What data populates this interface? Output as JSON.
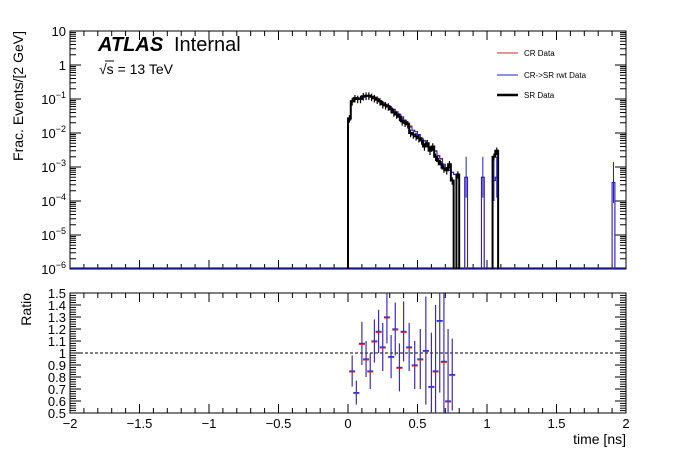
{
  "header": {
    "atlas": "ATLAS",
    "internal": "Internal",
    "energy_sqrt": "√s",
    "energy_rest": " = 13 TeV"
  },
  "colors": {
    "cr": "#cc2a2a",
    "rwt": "#1f1fcc",
    "sr": "#000000",
    "ratio": "#3b2bbf"
  },
  "legend": {
    "cr": "CR Data",
    "rwt": "CR->SR rwt Data",
    "sr": "SR Data"
  },
  "chart_data": [
    {
      "type": "histogram",
      "ylabel": "Frac. Events/[2 GeV]",
      "xlim": [
        -2,
        2
      ],
      "ylim": [
        1e-06,
        10
      ],
      "log_y": true,
      "x_ticks": [
        -2,
        -1.5,
        -1,
        -0.5,
        0,
        0.5,
        1,
        1.5,
        2
      ],
      "y_ticks": [
        {
          "value": 1e-06,
          "base": "10",
          "exp": "−6"
        },
        {
          "value": 1e-05,
          "base": "10",
          "exp": "−5"
        },
        {
          "value": 0.0001,
          "base": "10",
          "exp": "−4"
        },
        {
          "value": 0.001,
          "base": "10",
          "exp": "−3"
        },
        {
          "value": 0.01,
          "base": "10",
          "exp": "−2"
        },
        {
          "value": 0.1,
          "base": "10",
          "exp": "−1"
        },
        {
          "value": 1,
          "base": "1",
          "exp": ""
        },
        {
          "value": 10,
          "base": "10",
          "exp": ""
        }
      ],
      "legend_position": "top-right",
      "bin_width": 0.02,
      "series": [
        {
          "key": "cr",
          "name": "CR Data",
          "style": "hist",
          "bins": [
            [
              0.0,
              0.025
            ],
            [
              0.02,
              0.09
            ],
            [
              0.04,
              0.11
            ],
            [
              0.06,
              0.11
            ],
            [
              0.08,
              0.1
            ],
            [
              0.1,
              0.115
            ],
            [
              0.12,
              0.12
            ],
            [
              0.14,
              0.125
            ],
            [
              0.16,
              0.12
            ],
            [
              0.18,
              0.115
            ],
            [
              0.2,
              0.105
            ],
            [
              0.22,
              0.09
            ],
            [
              0.24,
              0.08
            ],
            [
              0.26,
              0.07
            ],
            [
              0.28,
              0.065
            ],
            [
              0.3,
              0.055
            ],
            [
              0.32,
              0.05
            ],
            [
              0.34,
              0.042
            ],
            [
              0.36,
              0.036
            ],
            [
              0.38,
              0.03
            ],
            [
              0.4,
              0.024
            ],
            [
              0.42,
              0.02
            ],
            [
              0.44,
              0.016
            ],
            [
              0.46,
              0.012
            ],
            [
              0.48,
              0.011
            ],
            [
              0.5,
              0.009
            ],
            [
              0.52,
              0.007
            ],
            [
              0.54,
              0.006
            ],
            [
              0.56,
              0.005
            ],
            [
              0.58,
              0.004
            ],
            [
              0.6,
              0.0035
            ],
            [
              0.62,
              0.003
            ],
            [
              0.64,
              0.0022
            ],
            [
              0.66,
              0.0018
            ],
            [
              0.68,
              0.0012
            ],
            [
              0.7,
              0.0009
            ],
            [
              0.72,
              0.0008
            ],
            [
              0.74,
              0.0007
            ],
            [
              0.76,
              0.0006
            ],
            [
              0.78,
              0.0006
            ],
            [
              0.84,
              0.0005
            ],
            [
              0.96,
              0.0005
            ],
            [
              1.04,
              0.0004
            ],
            [
              1.06,
              0.0005
            ],
            [
              1.9,
              0.00035
            ]
          ]
        },
        {
          "key": "rwt",
          "name": "CR->SR rwt Data",
          "style": "hist",
          "bins": [
            [
              0.0,
              0.024
            ],
            [
              0.02,
              0.088
            ],
            [
              0.04,
              0.108
            ],
            [
              0.06,
              0.11
            ],
            [
              0.08,
              0.1
            ],
            [
              0.1,
              0.112
            ],
            [
              0.12,
              0.118
            ],
            [
              0.14,
              0.12
            ],
            [
              0.16,
              0.118
            ],
            [
              0.18,
              0.112
            ],
            [
              0.2,
              0.102
            ],
            [
              0.22,
              0.088
            ],
            [
              0.24,
              0.078
            ],
            [
              0.26,
              0.068
            ],
            [
              0.28,
              0.064
            ],
            [
              0.3,
              0.054
            ],
            [
              0.32,
              0.049
            ],
            [
              0.34,
              0.041
            ],
            [
              0.36,
              0.035
            ],
            [
              0.38,
              0.029
            ],
            [
              0.4,
              0.023
            ],
            [
              0.42,
              0.019
            ],
            [
              0.44,
              0.015
            ],
            [
              0.46,
              0.012
            ],
            [
              0.48,
              0.011
            ],
            [
              0.5,
              0.009
            ],
            [
              0.52,
              0.007
            ],
            [
              0.54,
              0.0058
            ],
            [
              0.56,
              0.0048
            ],
            [
              0.58,
              0.0038
            ],
            [
              0.6,
              0.0034
            ],
            [
              0.62,
              0.0029
            ],
            [
              0.64,
              0.0021
            ],
            [
              0.66,
              0.0017
            ],
            [
              0.68,
              0.0012
            ],
            [
              0.7,
              0.0009
            ],
            [
              0.72,
              0.0008
            ],
            [
              0.74,
              0.0007
            ],
            [
              0.76,
              0.0006
            ],
            [
              0.78,
              0.0006
            ],
            [
              0.84,
              0.0005
            ],
            [
              0.96,
              0.0005
            ],
            [
              1.04,
              0.0004
            ],
            [
              1.06,
              0.0005
            ],
            [
              1.9,
              0.00035
            ]
          ]
        },
        {
          "key": "sr",
          "name": "SR Data",
          "style": "hist-errors",
          "bins": [
            [
              0.0,
              0.027
            ],
            [
              0.02,
              0.085
            ],
            [
              0.04,
              0.105
            ],
            [
              0.06,
              0.1
            ],
            [
              0.08,
              0.1
            ],
            [
              0.1,
              0.12
            ],
            [
              0.12,
              0.125
            ],
            [
              0.14,
              0.125
            ],
            [
              0.16,
              0.115
            ],
            [
              0.18,
              0.105
            ],
            [
              0.2,
              0.095
            ],
            [
              0.22,
              0.085
            ],
            [
              0.24,
              0.07
            ],
            [
              0.26,
              0.065
            ],
            [
              0.28,
              0.06
            ],
            [
              0.3,
              0.05
            ],
            [
              0.32,
              0.04
            ],
            [
              0.34,
              0.035
            ],
            [
              0.36,
              0.03
            ],
            [
              0.38,
              0.022
            ],
            [
              0.4,
              0.02
            ],
            [
              0.42,
              0.018
            ],
            [
              0.44,
              0.01
            ],
            [
              0.46,
              0.009
            ],
            [
              0.48,
              0.008
            ],
            [
              0.5,
              0.007
            ],
            [
              0.52,
              0.006
            ],
            [
              0.54,
              0.004
            ],
            [
              0.56,
              0.005
            ],
            [
              0.58,
              0.003
            ],
            [
              0.6,
              0.004
            ],
            [
              0.62,
              0.002
            ],
            [
              0.64,
              0.0015
            ],
            [
              0.66,
              0.0012
            ],
            [
              0.68,
              0.0009
            ],
            [
              0.7,
              0.0008
            ],
            [
              0.72,
              0.0012
            ],
            [
              0.74,
              0.0004
            ],
            [
              0.78,
              0.0006
            ],
            [
              1.04,
              0.002
            ],
            [
              1.06,
              0.003
            ]
          ]
        }
      ]
    },
    {
      "type": "scatter",
      "ylabel": "Ratio",
      "xlabel": "time [ns]",
      "xlim": [
        -2,
        2
      ],
      "ylim": [
        0.5,
        1.5
      ],
      "x_ticks": [
        -2,
        -1.5,
        -1,
        -0.5,
        0,
        0.5,
        1,
        1.5,
        2
      ],
      "y_ticks": [
        0.5,
        0.6,
        0.7,
        0.8,
        0.9,
        1,
        1.1,
        1.2,
        1.3,
        1.4,
        1.5
      ],
      "reference_line": 1,
      "points": [
        {
          "x": 0.03,
          "y": 0.85,
          "err": 0.13
        },
        {
          "x": 0.06,
          "y": 0.67,
          "err": 0.1
        },
        {
          "x": 0.1,
          "y": 1.08,
          "err": 0.18
        },
        {
          "x": 0.13,
          "y": 0.95,
          "err": 0.15
        },
        {
          "x": 0.16,
          "y": 0.85,
          "err": 0.15
        },
        {
          "x": 0.19,
          "y": 1.1,
          "err": 0.18
        },
        {
          "x": 0.22,
          "y": 1.18,
          "err": 0.18
        },
        {
          "x": 0.25,
          "y": 1.05,
          "err": 0.2
        },
        {
          "x": 0.28,
          "y": 1.3,
          "err": 0.22
        },
        {
          "x": 0.31,
          "y": 0.97,
          "err": 0.18
        },
        {
          "x": 0.34,
          "y": 1.2,
          "err": 0.22
        },
        {
          "x": 0.37,
          "y": 0.88,
          "err": 0.2
        },
        {
          "x": 0.4,
          "y": 1.18,
          "err": 0.25
        },
        {
          "x": 0.44,
          "y": 1.05,
          "err": 0.2
        },
        {
          "x": 0.48,
          "y": 0.9,
          "err": 0.2
        },
        {
          "x": 0.52,
          "y": 0.95,
          "err": 0.25
        },
        {
          "x": 0.56,
          "y": 1.02,
          "err": 0.45
        },
        {
          "x": 0.6,
          "y": 0.72,
          "err": 0.45
        },
        {
          "x": 0.63,
          "y": 0.85,
          "err": 0.55
        },
        {
          "x": 0.66,
          "y": 1.27,
          "err": 0.6
        },
        {
          "x": 0.69,
          "y": 0.93,
          "err": 0.6
        },
        {
          "x": 0.72,
          "y": 0.6,
          "err": 0.6
        },
        {
          "x": 0.75,
          "y": 0.82,
          "err": 0.3
        }
      ]
    }
  ]
}
